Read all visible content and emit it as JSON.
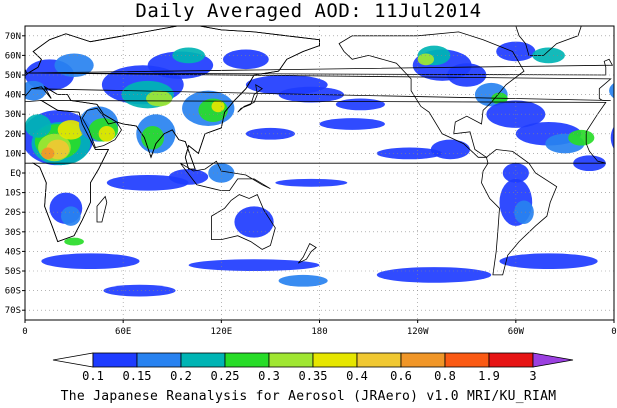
{
  "title": "Daily Averaged AOD: 11Jul2014",
  "footer": "The Japanese Reanalysis for Aerosol (JRAero) v1.0 MRI/KU_RIAM",
  "map": {
    "lon_range": [
      0,
      360
    ],
    "lat_range": [
      -75,
      75
    ],
    "grid": true,
    "lat_labels": [
      "70N",
      "60N",
      "50N",
      "40N",
      "30N",
      "20N",
      "10N",
      "EQ",
      "10S",
      "20S",
      "30S",
      "40S",
      "50S",
      "60S",
      "70S"
    ],
    "lon_labels": [
      "0",
      "60E",
      "120E",
      "180",
      "120W",
      "60W",
      "0"
    ],
    "ocean_color": "#ffffff",
    "coast_color": "#000000"
  },
  "colorbar": {
    "levels": [
      "0.1",
      "0.15",
      "0.2",
      "0.25",
      "0.3",
      "0.35",
      "0.4",
      "0.6",
      "0.8",
      "1.9",
      "3"
    ],
    "colors": [
      "#ffffff",
      "#1e3cff",
      "#2882f0",
      "#00b4b4",
      "#28dc28",
      "#a0e632",
      "#e6e600",
      "#f0c832",
      "#f09628",
      "#fa5a14",
      "#e61414",
      "#9b40e0"
    ]
  }
}
